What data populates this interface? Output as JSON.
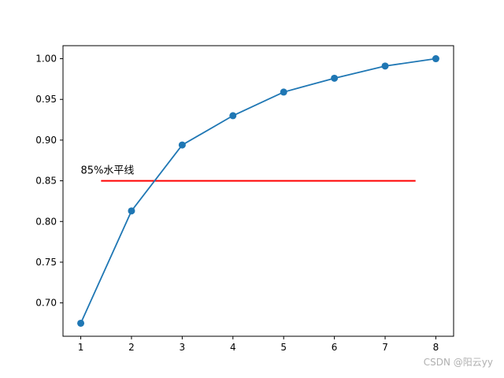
{
  "chart_data": {
    "type": "line",
    "x": [
      1,
      2,
      3,
      4,
      5,
      6,
      7,
      8
    ],
    "series": [
      {
        "values": [
          0.675,
          0.813,
          0.894,
          0.93,
          0.959,
          0.976,
          0.991,
          1.0
        ],
        "color": "#1f77b4",
        "marker": "circle"
      }
    ],
    "reference_line": {
      "y": 0.85,
      "x_start": 1.4,
      "x_end": 7.6,
      "color": "#ff0000",
      "label": "85%水平线",
      "label_x": 1.0,
      "label_y": 0.859
    },
    "xlim": [
      0.65,
      8.35
    ],
    "ylim": [
      0.659,
      1.016
    ],
    "xticks": [
      "1",
      "2",
      "3",
      "4",
      "5",
      "6",
      "7",
      "8"
    ],
    "yticks": [
      "0.70",
      "0.75",
      "0.80",
      "0.85",
      "0.90",
      "0.95",
      "1.00"
    ],
    "title": "",
    "xlabel": "",
    "ylabel": "",
    "grid": false
  },
  "watermark": "CSDN @阳云yy"
}
